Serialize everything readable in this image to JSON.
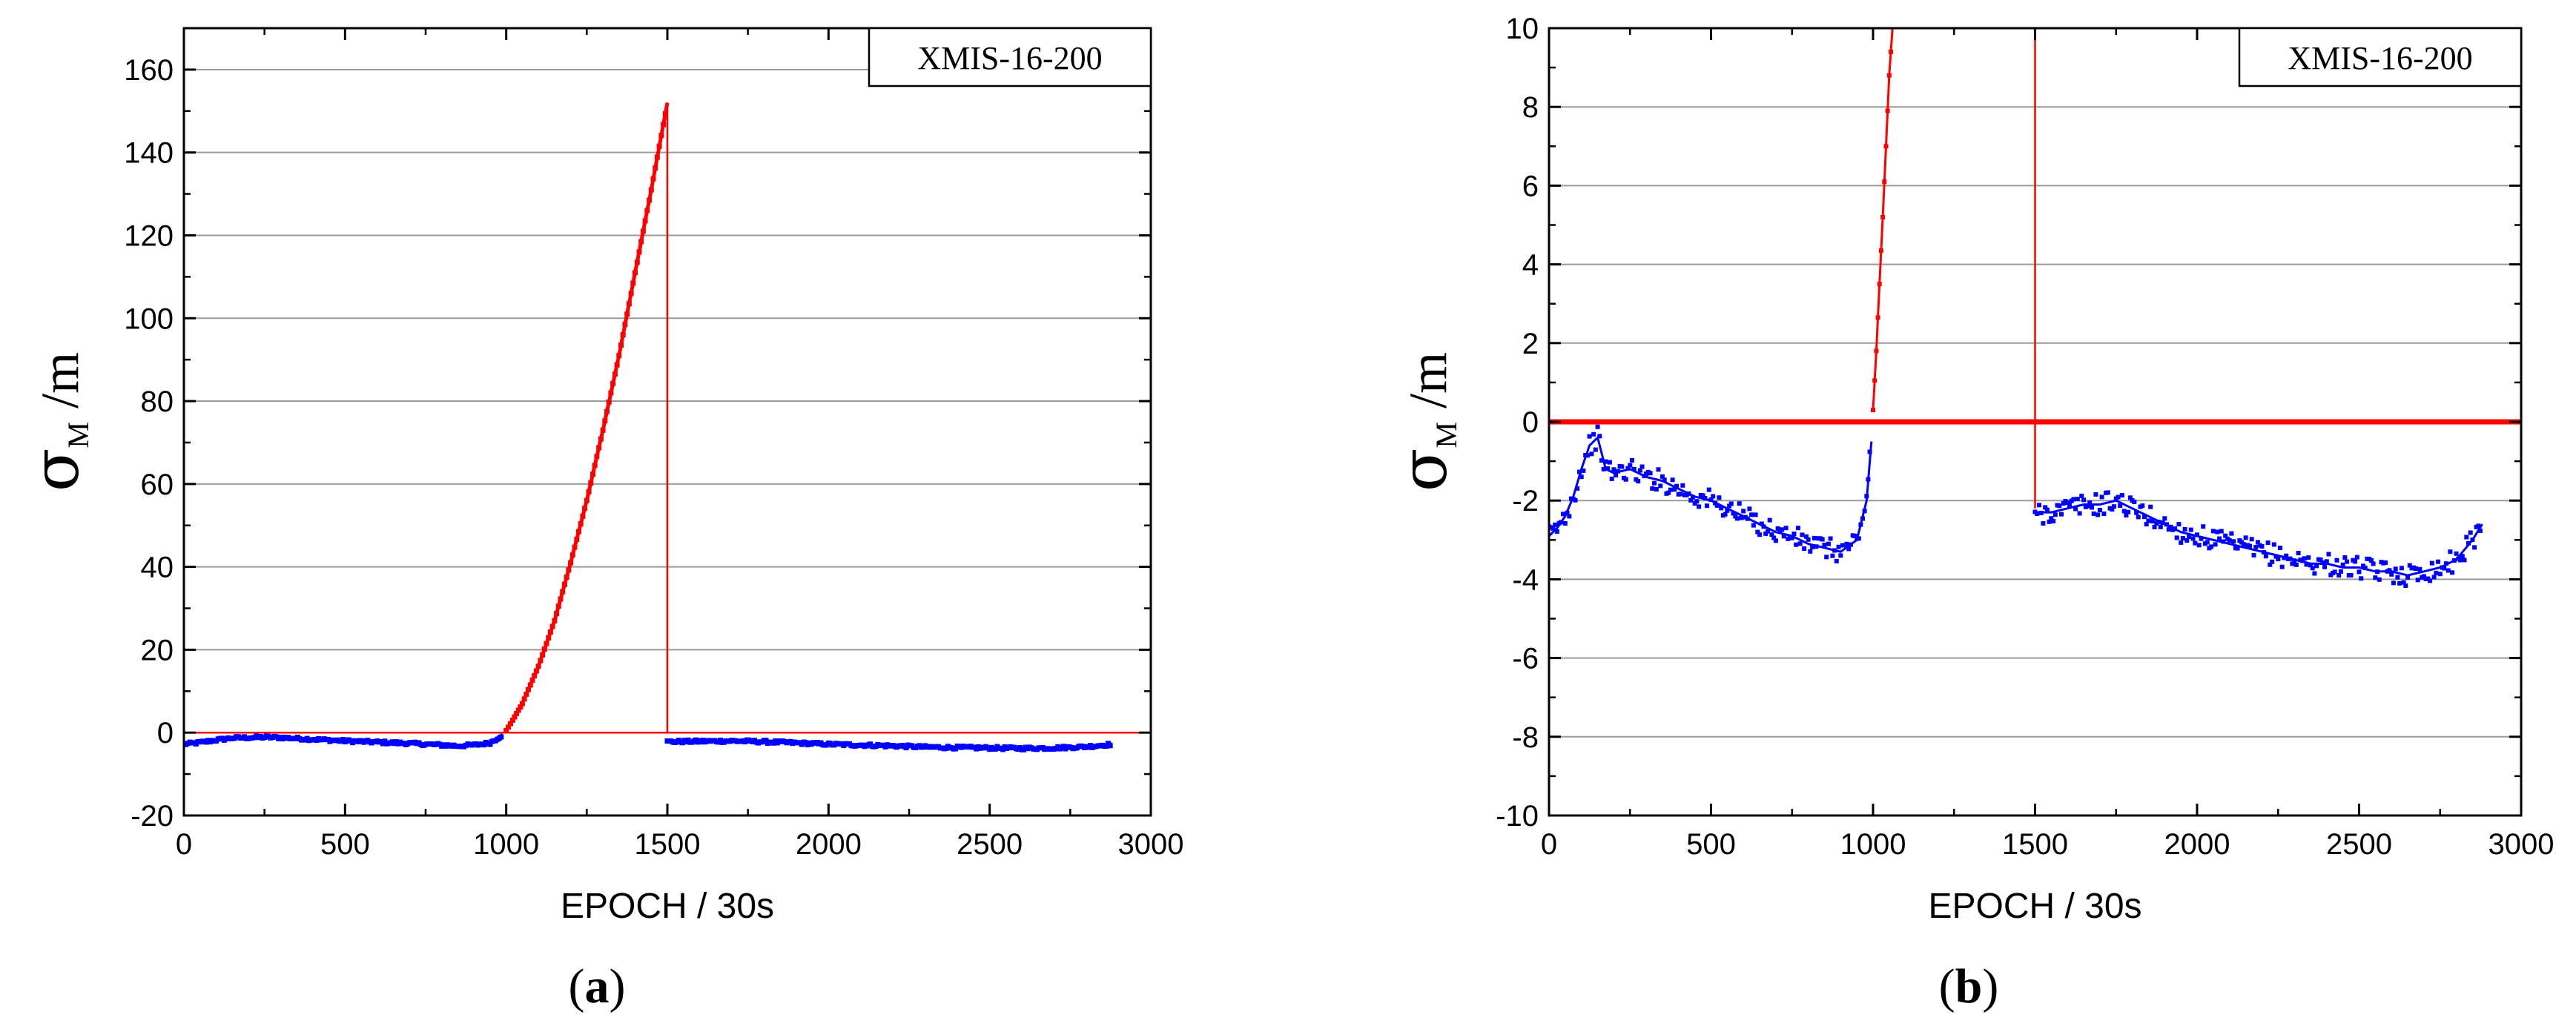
{
  "chart_data": [
    {
      "type": "line",
      "panel_label": "a",
      "annotation": "XMIS-16-200",
      "xlabel": "EPOCH / 30s",
      "ylabel_symbol": "σ",
      "ylabel_subscript": "M",
      "ylabel_unit": "/m",
      "xlim": [
        0,
        3000
      ],
      "ylim": [
        -20,
        170
      ],
      "xticks": [
        0,
        500,
        1000,
        1500,
        2000,
        2500,
        3000
      ],
      "yticks": [
        -20,
        0,
        20,
        40,
        60,
        80,
        100,
        120,
        140,
        160
      ],
      "grid": true,
      "reference_lines": [
        {
          "orientation": "horizontal",
          "value": 0,
          "color": "#ff0000"
        },
        {
          "orientation": "vertical",
          "value": 1500,
          "from": 0,
          "to": 152,
          "color": "#ff0000"
        }
      ],
      "series": [
        {
          "color": "#0000ff",
          "marker": "square",
          "x": [
            0,
            50,
            100,
            150,
            200,
            250,
            300,
            400,
            500,
            600,
            700,
            800,
            850,
            900,
            950,
            990
          ],
          "y": [
            -2.8,
            -2.4,
            -1.8,
            -1.3,
            -1.2,
            -1.1,
            -1.2,
            -1.6,
            -2.0,
            -2.3,
            -2.6,
            -3.0,
            -3.2,
            -3.0,
            -2.5,
            -0.5
          ]
        },
        {
          "color": "#ff0000",
          "marker": "square",
          "x": [
            1000,
            1020,
            1050,
            1100,
            1150,
            1200,
            1250,
            1300,
            1350,
            1400,
            1450,
            1500
          ],
          "y": [
            0.5,
            3,
            7,
            16,
            27,
            41,
            56,
            73,
            91,
            111,
            131,
            152
          ]
        },
        {
          "color": "#0000ff",
          "marker": "square",
          "x": [
            1500,
            1600,
            1700,
            1800,
            1900,
            2000,
            2100,
            2200,
            2300,
            2400,
            2500,
            2600,
            2700,
            2800,
            2880
          ],
          "y": [
            -2.2,
            -2.1,
            -2.0,
            -2.2,
            -2.5,
            -2.8,
            -3.0,
            -3.2,
            -3.5,
            -3.6,
            -3.7,
            -3.8,
            -3.7,
            -3.4,
            -2.8
          ]
        }
      ]
    },
    {
      "type": "line",
      "panel_label": "b",
      "annotation": "XMIS-16-200",
      "xlabel": "EPOCH / 30s",
      "ylabel_symbol": "σ",
      "ylabel_subscript": "M",
      "ylabel_unit": "/m",
      "xlim": [
        0,
        3000
      ],
      "ylim": [
        -10,
        10
      ],
      "xticks": [
        0,
        500,
        1000,
        1500,
        2000,
        2500,
        3000
      ],
      "yticks": [
        -10,
        -8,
        -6,
        -4,
        -2,
        0,
        2,
        4,
        6,
        8,
        10
      ],
      "grid": true,
      "reference_lines": [
        {
          "orientation": "horizontal",
          "value": 0,
          "color": "#ff0000",
          "thick": true
        },
        {
          "orientation": "vertical",
          "value": 1500,
          "from": -2.2,
          "to": 10,
          "color": "#ff0000"
        }
      ],
      "series": [
        {
          "color": "#0000ff",
          "marker": "square",
          "x": [
            0,
            25,
            50,
            75,
            100,
            125,
            150,
            175,
            200,
            250,
            300,
            350,
            400,
            450,
            500,
            550,
            600,
            650,
            700,
            750,
            800,
            850,
            900,
            950,
            980,
            995
          ],
          "y": [
            -2.9,
            -2.7,
            -2.4,
            -1.9,
            -1.2,
            -0.6,
            -0.4,
            -1.2,
            -1.3,
            -1.2,
            -1.4,
            -1.5,
            -1.7,
            -1.9,
            -2.0,
            -2.2,
            -2.4,
            -2.6,
            -2.8,
            -2.9,
            -3.1,
            -3.2,
            -3.3,
            -3.0,
            -2.0,
            -0.5
          ]
        },
        {
          "color": "#ff0000",
          "marker": "square",
          "x": [
            1000,
            1010,
            1020,
            1030,
            1040,
            1050,
            1060
          ],
          "y": [
            0.3,
            1.8,
            3.5,
            5.2,
            7.0,
            8.8,
            10.0
          ]
        },
        {
          "color": "#0000ff",
          "marker": "square",
          "x": [
            1500,
            1550,
            1600,
            1650,
            1700,
            1750,
            1800,
            1850,
            1900,
            1950,
            2000,
            2050,
            2100,
            2150,
            2200,
            2250,
            2300,
            2350,
            2400,
            2450,
            2500,
            2550,
            2600,
            2650,
            2700,
            2750,
            2800,
            2850,
            2880
          ],
          "y": [
            -2.3,
            -2.3,
            -2.2,
            -2.1,
            -2.1,
            -2.0,
            -2.2,
            -2.4,
            -2.6,
            -2.8,
            -2.9,
            -3.0,
            -3.1,
            -3.2,
            -3.3,
            -3.4,
            -3.5,
            -3.6,
            -3.6,
            -3.7,
            -3.7,
            -3.8,
            -3.8,
            -3.9,
            -3.8,
            -3.7,
            -3.5,
            -3.0,
            -2.6
          ]
        }
      ]
    }
  ]
}
